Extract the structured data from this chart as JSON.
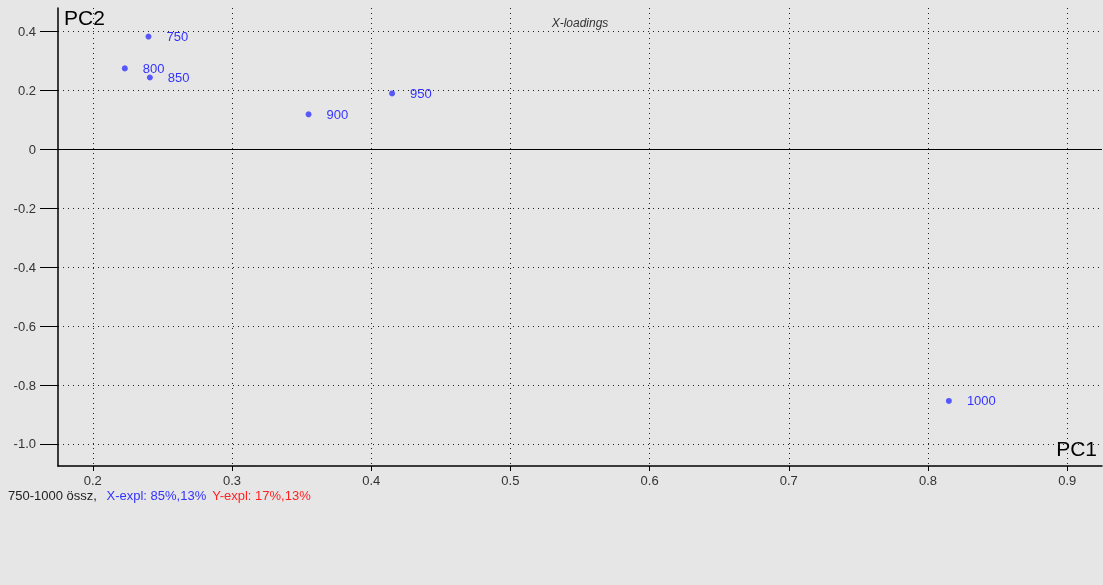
{
  "chart_data": {
    "type": "scatter",
    "title": "X-loadings",
    "xlabel": "PC1",
    "ylabel": "PC2",
    "x": [
      0.24,
      0.223,
      0.241,
      0.355,
      0.415,
      0.815
    ],
    "series": [
      {
        "color": "#3333ff",
        "values": [
          0.383,
          0.275,
          0.244,
          0.119,
          0.19,
          -0.854
        ]
      }
    ],
    "xlim": [
      0.175,
      0.925
    ],
    "ylim": [
      -1.075,
      0.48
    ],
    "xticks": [
      0.2,
      0.3,
      0.4,
      0.5,
      0.6,
      0.7,
      0.8,
      0.9
    ],
    "yticks": [
      0.4,
      0.2,
      0,
      -0.2,
      -0.4,
      -0.6,
      -0.8,
      {
        "value": -1,
        "label": "-1.0"
      }
    ],
    "grid": true,
    "marker": "circle",
    "ref_lines": [
      {
        "axis": "y",
        "value": 0,
        "color": "#000000",
        "line_style": "solid"
      }
    ],
    "annotations": [
      {
        "text": "750",
        "x": 0.24,
        "y": 0.383
      },
      {
        "text": "800",
        "x": 0.223,
        "y": 0.275
      },
      {
        "text": "850",
        "x": 0.241,
        "y": 0.244
      },
      {
        "text": "900",
        "x": 0.355,
        "y": 0.119
      },
      {
        "text": "950",
        "x": 0.415,
        "y": 0.19
      },
      {
        "text": "1000",
        "x": 0.815,
        "y": -0.854
      },
      "750-1000 össz, ",
      "X-expl: 85%,13%",
      "Y-expl: 17%,13%"
    ]
  }
}
